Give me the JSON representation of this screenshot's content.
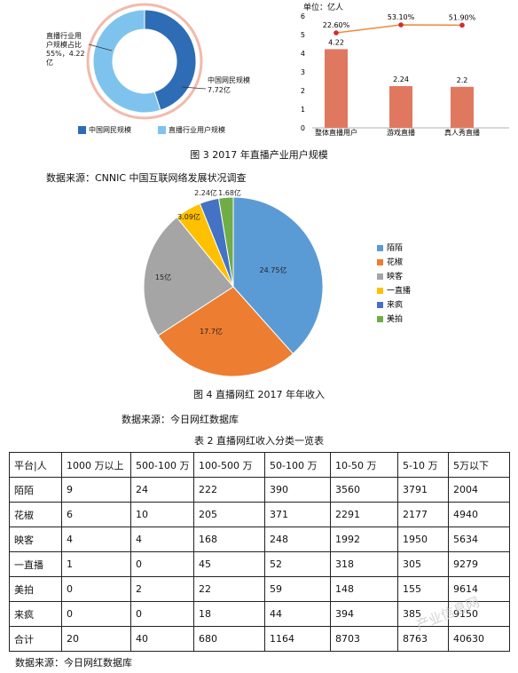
{
  "figure3": {
    "donut": {
      "label_left_line1": "直播行业用",
      "label_left_line2": "户规模占比",
      "label_left_line3": "55%，4.22",
      "label_left_line4": "亿",
      "label_right_line1": "中国网民规模",
      "label_right_line2": "7.72亿",
      "legend": [
        {
          "label": "中国网民规模",
          "color": "#2e6db5"
        },
        {
          "label": "直播行业用户规模",
          "color": "#7ec3ee"
        }
      ],
      "colors": {
        "outer_ring": "#f3b9ac"
      }
    },
    "bar_chart": {
      "unit": "单位：亿人",
      "color_bar": "#e07860",
      "color_line": "#ee8a3a",
      "color_marker": "#d42b2b"
    },
    "caption": "图 3 2017 年直播产业用户规模"
  },
  "source1": "数据来源：CNNIC 中国互联网络发展状况调查",
  "figure4": {
    "caption": "图 4  直播网红 2017 年年收入"
  },
  "source2": "数据来源：今日网红数据库",
  "table": {
    "caption": "表 2  直播网红收入分类一览表",
    "headers": [
      "平台|人",
      "1000 万以上",
      "500-100 万",
      "100-500 万",
      "50-100 万",
      "10-50 万",
      "5-10 万",
      "5万以下"
    ],
    "rows": [
      [
        "陌陌",
        "9",
        "24",
        "222",
        "390",
        "3560",
        "3791",
        "2004"
      ],
      [
        "花椒",
        "6",
        "10",
        "205",
        "371",
        "2291",
        "2177",
        "4940"
      ],
      [
        "映客",
        "4",
        "4",
        "168",
        "248",
        "1992",
        "1950",
        "5634"
      ],
      [
        "一直播",
        "1",
        "0",
        "45",
        "52",
        "318",
        "305",
        "9279"
      ],
      [
        "美拍",
        "0",
        "2",
        "22",
        "59",
        "148",
        "155",
        "9614"
      ],
      [
        "来疯",
        "0",
        "0",
        "18",
        "44",
        "394",
        "385",
        "9150"
      ],
      [
        "合计",
        "20",
        "40",
        "680",
        "1164",
        "8703",
        "8763",
        "40630"
      ]
    ]
  },
  "source3": "数据来源：今日网红数据库",
  "watermark": "产业信息网",
  "chart_data": [
    {
      "type": "pie",
      "subtype": "donut",
      "labels": [
        "中国网民规模",
        "直播行业用户规模"
      ],
      "values": [
        45,
        55
      ],
      "value_labels": [
        "7.72亿",
        "4.22亿"
      ]
    },
    {
      "type": "bar",
      "categories": [
        "整体直播用户",
        "游戏直播",
        "真人秀直播"
      ],
      "values": [
        4.22,
        2.24,
        2.2
      ],
      "value_labels": [
        "4.22",
        "2.24",
        "2.2"
      ],
      "ylim": [
        0,
        6
      ],
      "yticks": [
        "0",
        "1",
        "2",
        "3",
        "4",
        "5",
        "6"
      ],
      "line_series": {
        "values": [
          22.6,
          53.1,
          51.9
        ],
        "value_labels": [
          "22.60%",
          "53.10%",
          "51.90%"
        ],
        "ylim": [
          0,
          60
        ]
      },
      "grid": false
    },
    {
      "type": "pie",
      "labels": [
        "陌陌",
        "花椒",
        "映客",
        "一直播",
        "来疯",
        "美拍"
      ],
      "values": [
        24.75,
        17.7,
        15,
        3.09,
        2.24,
        1.68
      ],
      "value_labels": [
        "24.75亿",
        "17.7亿",
        "15亿",
        "3.09亿",
        "2.24亿",
        "1.68亿"
      ],
      "colors": [
        "#5b9bd5",
        "#ed7d31",
        "#a5a5a5",
        "#ffc000",
        "#4472c4",
        "#70ad47"
      ],
      "legend": {
        "position": "right",
        "entries": [
          "陌陌",
          "花椒",
          "映客",
          "一直播",
          "来疯",
          "美拍"
        ],
        "colors": [
          "#5b9bd5",
          "#ed7d31",
          "#a5a5a5",
          "#ffc000",
          "#4472c4",
          "#70ad47"
        ]
      }
    }
  ]
}
